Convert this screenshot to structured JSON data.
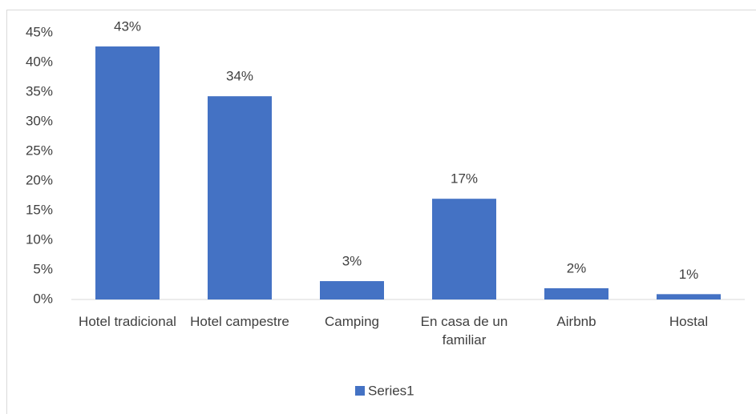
{
  "chart_data": {
    "type": "bar",
    "categories": [
      "Hotel tradicional",
      "Hotel campestre",
      "Camping",
      "En casa de un familiar",
      "Airbnb",
      "Hostal"
    ],
    "series": [
      {
        "name": "Series1",
        "color": "#4472c4",
        "values": [
          42.7,
          34.3,
          3.1,
          17,
          1.9,
          0.9
        ],
        "value_labels": [
          "43%",
          "34%",
          "3%",
          "17%",
          "2%",
          "1%"
        ]
      }
    ],
    "ylim": [
      0,
      45
    ],
    "yticks": [
      {
        "value": 0,
        "label": "0%"
      },
      {
        "value": 5,
        "label": "5%"
      },
      {
        "value": 10,
        "label": "10%"
      },
      {
        "value": 15,
        "label": "15%"
      },
      {
        "value": 20,
        "label": "20%"
      },
      {
        "value": 25,
        "label": "25%"
      },
      {
        "value": 30,
        "label": "30%"
      },
      {
        "value": 35,
        "label": "35%"
      },
      {
        "value": 40,
        "label": "40%"
      },
      {
        "value": 45,
        "label": "45%"
      }
    ],
    "grid": false,
    "legend": "bottom"
  }
}
